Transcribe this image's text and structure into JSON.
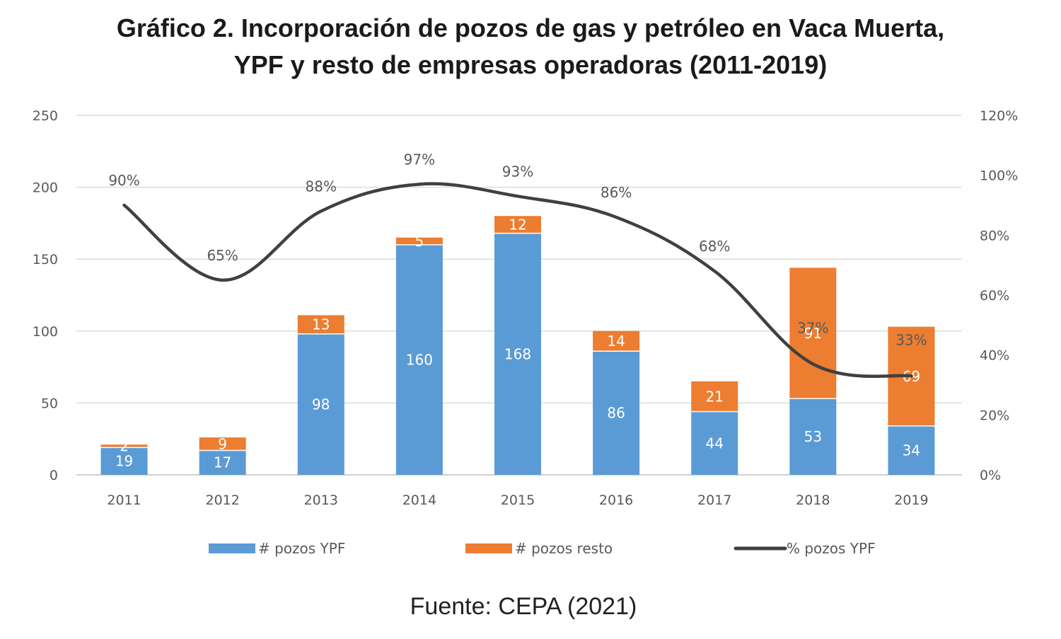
{
  "title_line1": "Gráfico 2. Incorporación de pozos de gas y petróleo en Vaca Muerta,",
  "title_line2": "YPF y resto de empresas operadoras (2011-2019)",
  "source": "Fuente: CEPA (2021)",
  "chart_data": {
    "type": "bar",
    "stacked": true,
    "title": "Gráfico 2. Incorporación de pozos de gas y petróleo en Vaca Muerta, YPF y resto de empresas operadoras (2011-2019)",
    "categories": [
      "2011",
      "2012",
      "2013",
      "2014",
      "2015",
      "2016",
      "2017",
      "2018",
      "2019"
    ],
    "series": [
      {
        "name": "# pozos YPF",
        "type": "bar",
        "axis": "left",
        "color": "#5b9bd5",
        "values": [
          19,
          17,
          98,
          160,
          168,
          86,
          44,
          53,
          34
        ]
      },
      {
        "name": "# pozos resto",
        "type": "bar",
        "axis": "left",
        "color": "#ed7d31",
        "values": [
          2,
          9,
          13,
          5,
          12,
          14,
          21,
          91,
          69
        ]
      },
      {
        "name": "% pozos YPF",
        "type": "line",
        "axis": "right",
        "color": "#404040",
        "values": [
          90,
          65,
          88,
          97,
          93,
          86,
          68,
          37,
          33
        ],
        "labels": [
          "90%",
          "65%",
          "88%",
          "97%",
          "93%",
          "86%",
          "68%",
          "37%",
          "33%"
        ]
      }
    ],
    "left_axis": {
      "ylim": [
        0,
        250
      ],
      "ticks": [
        "0",
        "50",
        "100",
        "150",
        "200",
        "250"
      ],
      "tick_values": [
        0,
        50,
        100,
        150,
        200,
        250
      ]
    },
    "right_axis": {
      "ylim": [
        0,
        120
      ],
      "ticks": [
        "0%",
        "20%",
        "40%",
        "60%",
        "80%",
        "100%",
        "120%"
      ],
      "tick_values": [
        0,
        20,
        40,
        60,
        80,
        100,
        120
      ]
    },
    "xlabel": "",
    "ylabel": "",
    "grid": true,
    "legend": "bottom"
  }
}
